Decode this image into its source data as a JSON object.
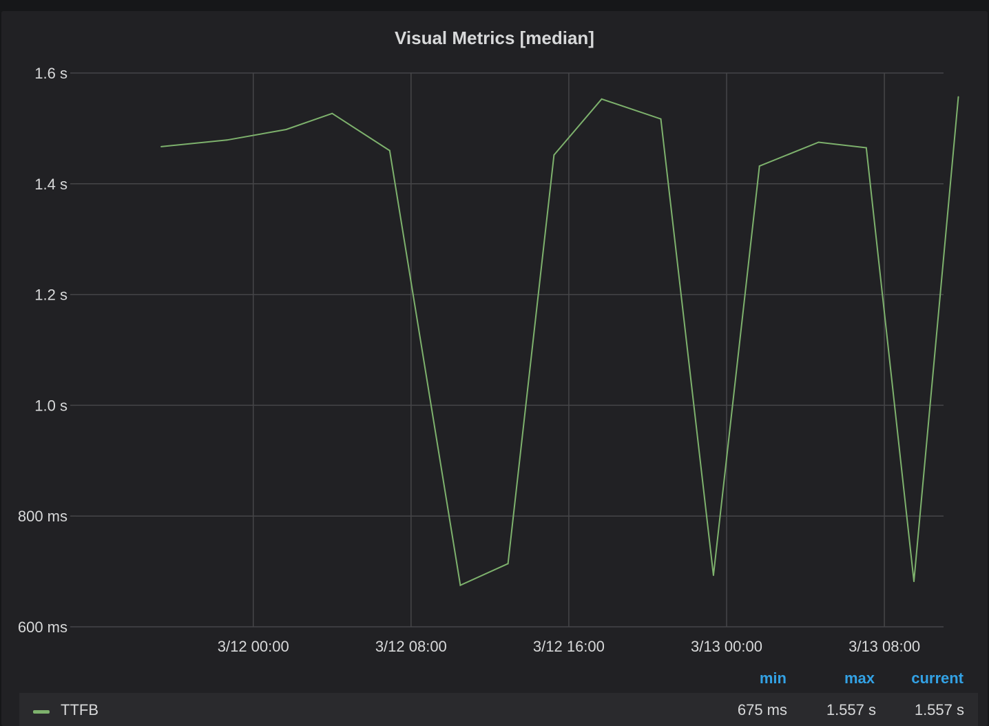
{
  "panel": {
    "title": "Visual Metrics [median]"
  },
  "legend": {
    "headers": {
      "min": "min",
      "max": "max",
      "current": "current"
    },
    "series": [
      {
        "name": "TTFB",
        "color": "#7eb26d",
        "min": "675 ms",
        "max": "1.557 s",
        "current": "1.557 s"
      }
    ]
  },
  "colors": {
    "background": "#212124",
    "grid": "#464649",
    "text": "#d8d9da",
    "legend_header": "#33a2e5",
    "series": "#7eb26d"
  },
  "chart_data": {
    "type": "line",
    "title": "Visual Metrics [median]",
    "x_start": "2022-03-11 15:00",
    "x_end": "2022-03-13 11:00",
    "x_ticks": [
      "3/12 00:00",
      "3/12 08:00",
      "3/12 16:00",
      "3/13 00:00",
      "3/13 08:00"
    ],
    "y_ticks": [
      "600 ms",
      "800 ms",
      "1.0 s",
      "1.2 s",
      "1.4 s",
      "1.6 s"
    ],
    "ylim": [
      0.6,
      1.6
    ],
    "y_unit": "s",
    "grid": true,
    "legend_position": "bottom",
    "series": [
      {
        "name": "TTFB",
        "color": "#7eb26d",
        "x": [
          "2022-03-11 19:20",
          "2022-03-11 22:40",
          "2022-03-12 01:40",
          "2022-03-12 04:00",
          "2022-03-12 06:55",
          "2022-03-12 10:30",
          "2022-03-12 12:55",
          "2022-03-12 15:15",
          "2022-03-12 17:40",
          "2022-03-12 20:40",
          "2022-03-12 23:20",
          "2022-03-13 01:40",
          "2022-03-13 04:40",
          "2022-03-13 07:05",
          "2022-03-13 09:30",
          "2022-03-13 11:45"
        ],
        "values": [
          1.467,
          1.479,
          1.498,
          1.527,
          1.46,
          0.675,
          0.714,
          1.452,
          1.553,
          1.517,
          0.693,
          1.432,
          1.475,
          1.465,
          0.682,
          1.557
        ]
      }
    ]
  }
}
